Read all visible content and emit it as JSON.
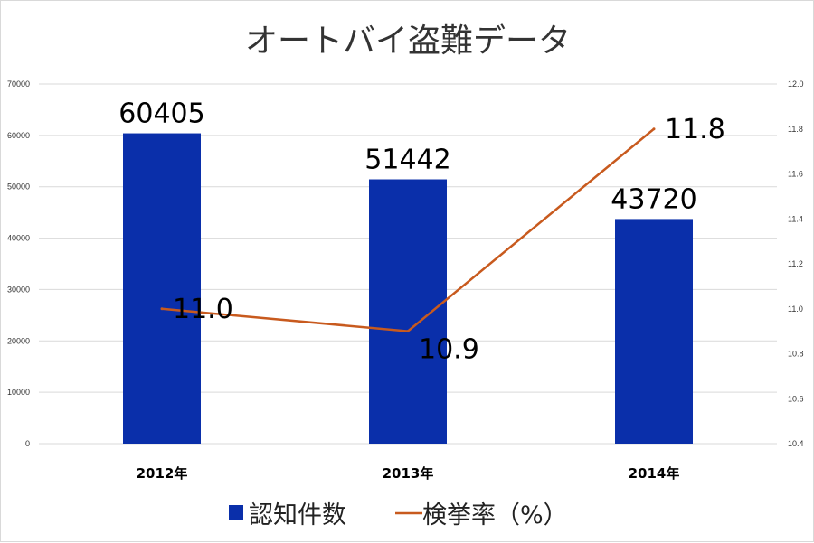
{
  "chart_data": {
    "type": "bar",
    "title": "オートバイ盗難データ",
    "categories": [
      "2012年",
      "2013年",
      "2014年"
    ],
    "series": [
      {
        "name": "認知件数",
        "kind": "bar",
        "axis": "left",
        "color": "#0a2faa",
        "values": [
          60405,
          51442,
          43720
        ],
        "labels": [
          "60405",
          "51442",
          "43720"
        ]
      },
      {
        "name": "検挙率（%）",
        "kind": "line",
        "axis": "right",
        "color": "#c85a1e",
        "values": [
          11.0,
          10.9,
          11.8
        ],
        "labels": [
          "11.0",
          "10.9",
          "11.8"
        ]
      }
    ],
    "y_left": {
      "min": 0,
      "max": 70000,
      "ticks": [
        "0",
        "10000",
        "20000",
        "30000",
        "40000",
        "50000",
        "60000",
        "70000"
      ]
    },
    "y_right": {
      "min": 10.4,
      "max": 12.0,
      "ticks": [
        "10.4",
        "10.6",
        "10.8",
        "11.0",
        "11.2",
        "11.4",
        "11.6",
        "11.8",
        "12.0"
      ]
    },
    "grid": true,
    "legend_position": "bottom"
  }
}
